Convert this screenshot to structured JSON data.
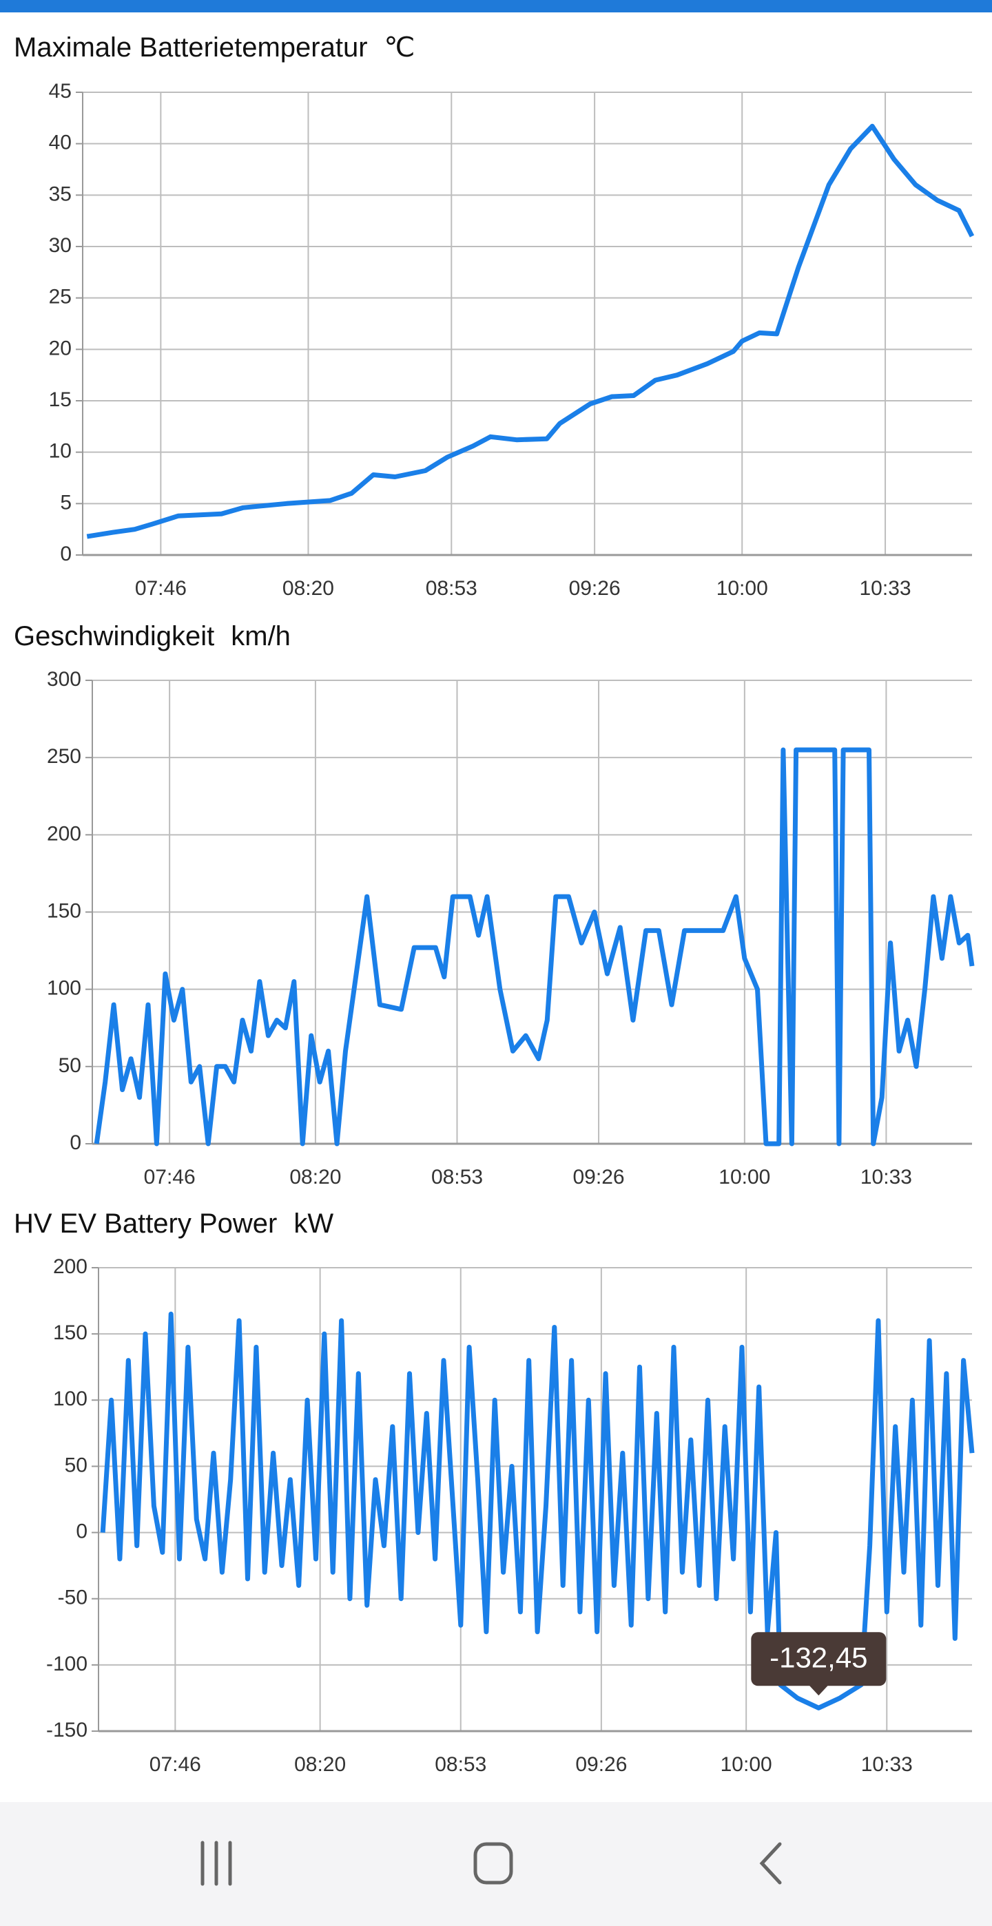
{
  "chart_data": [
    {
      "type": "line",
      "title": "Maximale Batterietemperatur",
      "unit": "℃",
      "x": [
        "07:29",
        "07:35",
        "07:40",
        "07:44",
        "07:50",
        "08:00",
        "08:05",
        "08:15",
        "08:25",
        "08:30",
        "08:35",
        "08:40",
        "08:47",
        "08:52",
        "08:58",
        "09:02",
        "09:08",
        "09:15",
        "09:18",
        "09:25",
        "09:30",
        "09:35",
        "09:40",
        "09:45",
        "09:52",
        "09:58",
        "10:00",
        "10:04",
        "10:08",
        "10:13",
        "10:20",
        "10:25",
        "10:30",
        "10:35",
        "10:40",
        "10:45",
        "10:50",
        "10:53"
      ],
      "xlim": [
        "07:28",
        "10:53"
      ],
      "xticks": [
        "07:46",
        "08:20",
        "08:53",
        "09:26",
        "10:00",
        "10:33"
      ],
      "ylim": [
        0,
        45
      ],
      "yticks": [
        0,
        5,
        10,
        15,
        20,
        25,
        30,
        35,
        40,
        45
      ],
      "grid": true,
      "series": [
        {
          "color": "#1a7fe8",
          "values": [
            1.8,
            2.2,
            2.5,
            3,
            3.8,
            4,
            4.6,
            5,
            5.3,
            6,
            7.8,
            7.6,
            8.2,
            9.5,
            10.6,
            11.5,
            11.2,
            11.3,
            12.8,
            14.7,
            15.4,
            15.5,
            17,
            17.5,
            18.6,
            19.8,
            20.8,
            21.6,
            21.5,
            28,
            36,
            39.5,
            41.7,
            38.5,
            36,
            34.5,
            33.5,
            31
          ]
        }
      ]
    },
    {
      "type": "line",
      "title": "Geschwindigkeit",
      "unit": "km/h",
      "x": [
        "07:29",
        "07:31",
        "07:33",
        "07:35",
        "07:37",
        "07:39",
        "07:41",
        "07:43",
        "07:45",
        "07:47",
        "07:49",
        "07:51",
        "07:53",
        "07:55",
        "07:57",
        "07:59",
        "08:01",
        "08:03",
        "08:05",
        "08:07",
        "08:09",
        "08:11",
        "08:13",
        "08:15",
        "08:17",
        "08:19",
        "08:21",
        "08:23",
        "08:25",
        "08:27",
        "08:29",
        "08:32",
        "08:35",
        "08:40",
        "08:43",
        "08:48",
        "08:50",
        "08:52",
        "08:56",
        "08:58",
        "09:00",
        "09:03",
        "09:06",
        "09:09",
        "09:12",
        "09:14",
        "09:16",
        "09:19",
        "09:22",
        "09:25",
        "09:28",
        "09:31",
        "09:34",
        "09:37",
        "09:40",
        "09:43",
        "09:46",
        "09:50",
        "09:55",
        "09:58",
        "10:00",
        "10:03",
        "10:05",
        "10:08",
        "10:09",
        "10:11",
        "10:12",
        "10:21",
        "10:22",
        "10:23",
        "10:29",
        "10:30",
        "10:32",
        "10:34",
        "10:36",
        "10:38",
        "10:40",
        "10:42",
        "10:44",
        "10:46",
        "10:48",
        "10:50",
        "10:52",
        "10:53"
      ],
      "xlim": [
        "07:28",
        "10:53"
      ],
      "xticks": [
        "07:46",
        "08:20",
        "08:53",
        "09:26",
        "10:00",
        "10:33"
      ],
      "ylim": [
        0,
        300
      ],
      "yticks": [
        0,
        50,
        100,
        150,
        200,
        250,
        300
      ],
      "grid": true,
      "series": [
        {
          "color": "#1a7fe8",
          "values": [
            0,
            40,
            90,
            35,
            55,
            30,
            90,
            0,
            110,
            80,
            100,
            40,
            50,
            0,
            50,
            50,
            40,
            80,
            60,
            105,
            70,
            80,
            75,
            105,
            0,
            70,
            40,
            60,
            0,
            60,
            100,
            160,
            90,
            87,
            127,
            127,
            108,
            160,
            160,
            135,
            160,
            100,
            60,
            70,
            55,
            80,
            160,
            160,
            130,
            150,
            110,
            140,
            80,
            138,
            138,
            90,
            138,
            138,
            138,
            160,
            120,
            100,
            0,
            0,
            255,
            0,
            255,
            255,
            0,
            255,
            255,
            0,
            30,
            130,
            60,
            80,
            50,
            100,
            160,
            120,
            160,
            130,
            135,
            115
          ]
        }
      ]
    },
    {
      "type": "line",
      "title": "HV EV Battery Power",
      "unit": "kW",
      "x": [
        "07:29",
        "07:31",
        "07:33",
        "07:35",
        "07:37",
        "07:39",
        "07:41",
        "07:43",
        "07:45",
        "07:47",
        "07:49",
        "07:51",
        "07:53",
        "07:55",
        "07:57",
        "07:59",
        "08:01",
        "08:03",
        "08:05",
        "08:07",
        "08:09",
        "08:11",
        "08:13",
        "08:15",
        "08:17",
        "08:19",
        "08:21",
        "08:23",
        "08:25",
        "08:27",
        "08:29",
        "08:31",
        "08:33",
        "08:35",
        "08:37",
        "08:39",
        "08:41",
        "08:43",
        "08:45",
        "08:47",
        "08:49",
        "08:51",
        "08:53",
        "08:55",
        "08:57",
        "08:59",
        "09:01",
        "09:03",
        "09:05",
        "09:07",
        "09:09",
        "09:11",
        "09:13",
        "09:15",
        "09:17",
        "09:19",
        "09:21",
        "09:23",
        "09:25",
        "09:27",
        "09:29",
        "09:31",
        "09:33",
        "09:35",
        "09:37",
        "09:39",
        "09:41",
        "09:43",
        "09:45",
        "09:47",
        "09:49",
        "09:51",
        "09:53",
        "09:55",
        "09:57",
        "09:59",
        "10:01",
        "10:03",
        "10:05",
        "10:07",
        "10:08",
        "10:12",
        "10:17",
        "10:22",
        "10:27",
        "10:29",
        "10:31",
        "10:33",
        "10:35",
        "10:37",
        "10:39",
        "10:41",
        "10:43",
        "10:45",
        "10:47",
        "10:49",
        "10:51",
        "10:53"
      ],
      "xlim": [
        "07:28",
        "10:53"
      ],
      "xticks": [
        "07:46",
        "08:20",
        "08:53",
        "09:26",
        "10:00",
        "10:33"
      ],
      "ylim": [
        -150,
        200
      ],
      "yticks": [
        -150,
        -100,
        -50,
        0,
        50,
        100,
        150,
        200
      ],
      "grid": true,
      "series": [
        {
          "color": "#1a7fe8",
          "values": [
            0,
            100,
            -20,
            130,
            -10,
            150,
            20,
            -15,
            165,
            -20,
            140,
            10,
            -20,
            60,
            -30,
            40,
            160,
            -35,
            140,
            -30,
            60,
            -25,
            40,
            -40,
            100,
            -20,
            150,
            -30,
            160,
            -50,
            120,
            -55,
            40,
            -10,
            80,
            -50,
            120,
            0,
            90,
            -20,
            130,
            30,
            -70,
            140,
            40,
            -75,
            100,
            -30,
            50,
            -60,
            130,
            -75,
            20,
            155,
            -40,
            130,
            -60,
            100,
            -75,
            120,
            -40,
            60,
            -70,
            125,
            -50,
            90,
            -60,
            140,
            -30,
            70,
            -40,
            100,
            -50,
            80,
            -20,
            140,
            -60,
            110,
            -75,
            0,
            -115,
            -125,
            -132.45,
            -125,
            -115,
            -10,
            160,
            -60,
            80,
            -30,
            100,
            -70,
            145,
            -40,
            120,
            -80,
            130,
            60
          ]
        }
      ],
      "annotation": {
        "x": "10:17",
        "y": -132.45,
        "label": "-132,45"
      }
    }
  ]
}
